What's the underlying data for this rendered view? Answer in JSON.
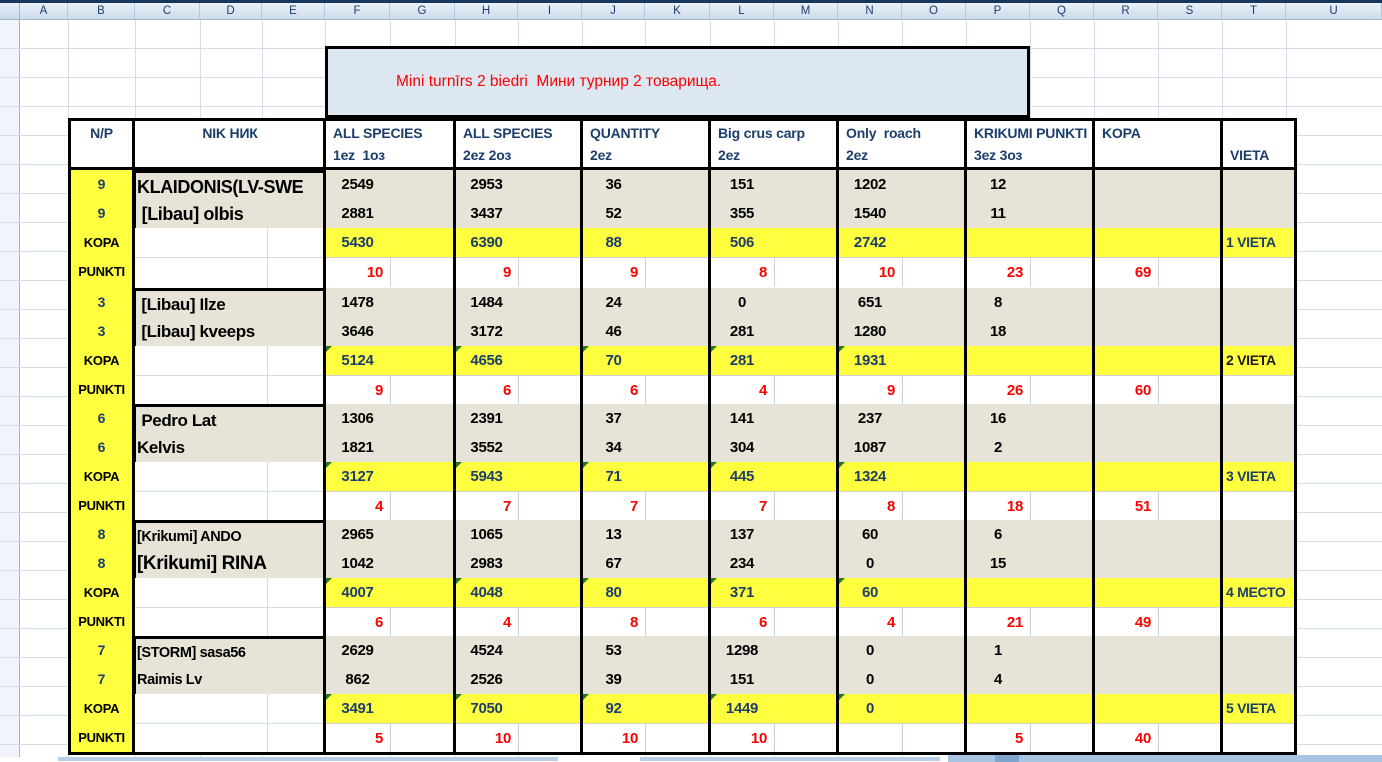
{
  "sheet": {
    "column_letters": [
      "A",
      "B",
      "C",
      "D",
      "E",
      "F",
      "G",
      "H",
      "I",
      "J",
      "K",
      "L",
      "M",
      "N",
      "O",
      "P",
      "Q",
      "R",
      "S",
      "T",
      "U"
    ],
    "title": "Mini turnīrs 2 biedri  Мини турнир 2 товарища.",
    "title_color": "#ff0000",
    "colors": {
      "highlight_yellow": "#ffff40",
      "row_beige": "#e7e3d6",
      "navy_text": "#1c3e6b",
      "red_text": "#fe0000",
      "banner_bg": "#dce7f2",
      "flag_green": "#217a21"
    }
  },
  "header": {
    "np": "N/P",
    "nik": "NIK НИК",
    "cols": [
      {
        "line1": "ALL SPECIES",
        "line2": "1ez  1оз"
      },
      {
        "line1": "ALL SPECIES",
        "line2": "2ez 2оз"
      },
      {
        "line1": "QUANTITY",
        "line2": "2ez"
      },
      {
        "line1": "Big crus carp",
        "line2": "2ez"
      },
      {
        "line1": "Only  roach",
        "line2": "2ez"
      },
      {
        "line1": "KRIKUMI PUNKTI",
        "line2": "3ez 3оз"
      }
    ],
    "kopa": "KOPA",
    "vieta": "VIETA"
  },
  "row_labels": {
    "kopa": "KOPA",
    "punkti": "PUNKTI"
  },
  "teams": [
    {
      "num": "9",
      "name1": "KLAIDONIS(LV-SWE",
      "name2": " [Libau] olbis",
      "m1": [
        "2549",
        "2953",
        "36",
        "151",
        "1202",
        "12"
      ],
      "m2": [
        "2881",
        "3437",
        "52",
        "355",
        "1540",
        "11"
      ],
      "kopa": [
        "5430",
        "6390",
        "88",
        "506",
        "2742"
      ],
      "punkti": [
        "10",
        "9",
        "9",
        "8",
        "10",
        "23"
      ],
      "total": "69",
      "vieta": "1 VIETA",
      "vieta_color": "#1c3e6b",
      "green_flags": false
    },
    {
      "num": "3",
      "name1": " [Libau] Ilze",
      "name2": " [Libau] kveeps",
      "m1": [
        "1478",
        "1484",
        "24",
        "0",
        "651",
        "8"
      ],
      "m2": [
        "3646",
        "3172",
        "46",
        "281",
        "1280",
        "18"
      ],
      "kopa": [
        "5124",
        "4656",
        "70",
        "281",
        "1931"
      ],
      "punkti": [
        "9",
        "6",
        "6",
        "4",
        "9",
        "26"
      ],
      "total": "60",
      "vieta": "2 VIETA",
      "vieta_color": "#1a1a1a",
      "green_flags": true
    },
    {
      "num": "6",
      "name1": " Pedro Lat",
      "name2": "Kelvis",
      "m1": [
        "1306",
        "2391",
        "37",
        "141",
        "237",
        "16"
      ],
      "m2": [
        "1821",
        "3552",
        "34",
        "304",
        "1087",
        "2"
      ],
      "kopa": [
        "3127",
        "5943",
        "71",
        "445",
        "1324"
      ],
      "punkti": [
        "4",
        "7",
        "7",
        "7",
        "8",
        "18"
      ],
      "total": "51",
      "vieta": "3 VIETA",
      "vieta_color": "#1c3e6b",
      "green_flags": true
    },
    {
      "num": "8",
      "name1": "[Krikumi] ANDO",
      "name2": "[Krikumi] RINA",
      "m1": [
        "2965",
        "1065",
        "13",
        "137",
        "60",
        "6"
      ],
      "m2": [
        "1042",
        "2983",
        "67",
        "234",
        "0",
        "15"
      ],
      "kopa": [
        "4007",
        "4048",
        "80",
        "371",
        "60"
      ],
      "punkti": [
        "6",
        "4",
        "8",
        "6",
        "4",
        "21"
      ],
      "total": "49",
      "vieta": "4 МЕСТО",
      "vieta_color": "#1c3e6b",
      "green_flags": true
    },
    {
      "num": "7",
      "name1": "[STORM] sasa56",
      "name2": "Raimis Lv",
      "m1": [
        "2629",
        "4524",
        "53",
        "1298",
        "0",
        "1"
      ],
      "m2": [
        "862",
        "2526",
        "39",
        "151",
        "0",
        "4"
      ],
      "kopa": [
        "3491",
        "7050",
        "92",
        "1449",
        "0"
      ],
      "punkti": [
        "5",
        "10",
        "10",
        "10",
        "",
        "5"
      ],
      "total": "40",
      "vieta": "5 VIETA",
      "vieta_color": "#1c3e6b",
      "green_flags": true
    }
  ]
}
